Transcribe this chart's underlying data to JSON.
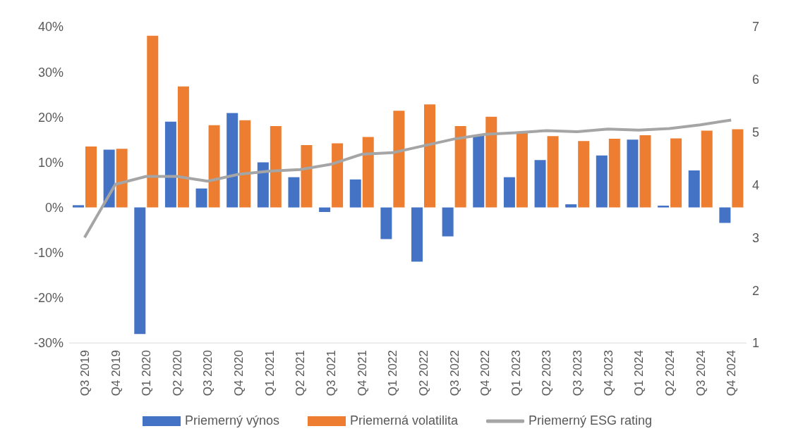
{
  "chart_data": {
    "type": "bar",
    "categories": [
      "Q3 2019",
      "Q4 2019",
      "Q1 2020",
      "Q2 2020",
      "Q3 2020",
      "Q4 2020",
      "Q1 2021",
      "Q2 2021",
      "Q3 2021",
      "Q4 2021",
      "Q1 2022",
      "Q2 2022",
      "Q3 2022",
      "Q4 2022",
      "Q1 2023",
      "Q2 2023",
      "Q3 2023",
      "Q4 2023",
      "Q1 2024",
      "Q2 2024",
      "Q3 2024",
      "Q4 2024"
    ],
    "series": [
      {
        "name": "Priemerný výnos",
        "color": "#4472c4",
        "values": [
          0.5,
          12.8,
          -28,
          19,
          4.2,
          20.9,
          10,
          6.7,
          -1,
          6.2,
          -7,
          -12,
          -6.4,
          16,
          6.7,
          10.5,
          0.7,
          11.5,
          15,
          0.4,
          8.2,
          -3.4
        ]
      },
      {
        "name": "Priemerná volatilita",
        "color": "#ed7d31",
        "values": [
          13.5,
          13,
          38,
          26.8,
          18.2,
          19.3,
          18,
          13.8,
          14.2,
          15.6,
          21.4,
          22.8,
          18,
          20.1,
          16.5,
          15.8,
          14.7,
          15.2,
          16,
          15.3,
          17,
          17.3
        ]
      },
      {
        "name": "Priemerný ESG rating",
        "type": "line",
        "axis": "y2",
        "color": "#a5a5a5",
        "values": [
          3.0,
          4.01,
          4.16,
          4.16,
          4.07,
          4.2,
          4.26,
          4.29,
          4.39,
          4.58,
          4.61,
          4.74,
          4.87,
          4.96,
          4.99,
          5.03,
          5.01,
          5.06,
          5.04,
          5.07,
          5.14,
          5.23
        ]
      }
    ],
    "ylim": [
      -30,
      40
    ],
    "yticks": [
      {
        "value": -30,
        "label": "-30%"
      },
      {
        "value": -20,
        "label": "-20%"
      },
      {
        "value": -10,
        "label": "-10%"
      },
      {
        "value": 0,
        "label": "0%"
      },
      {
        "value": 10,
        "label": "10%"
      },
      {
        "value": 20,
        "label": "20%"
      },
      {
        "value": 30,
        "label": "30%"
      },
      {
        "value": 40,
        "label": "40%"
      }
    ],
    "y2lim": [
      1,
      7
    ],
    "y2ticks": [
      1,
      2,
      3,
      4,
      5,
      6,
      7
    ],
    "grid": false,
    "legend": "bottom",
    "marker": "none"
  }
}
